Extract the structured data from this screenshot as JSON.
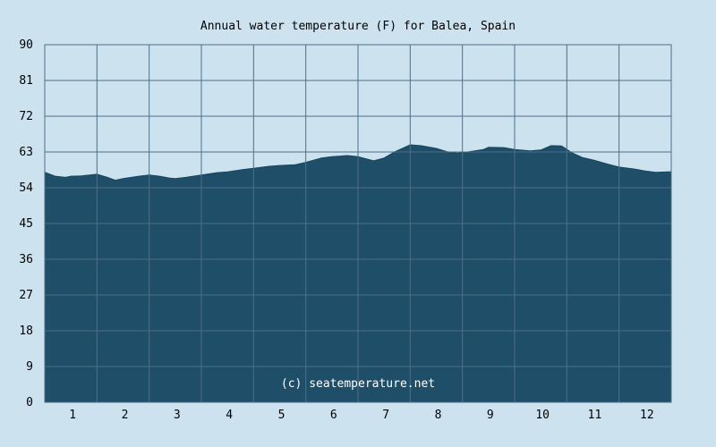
{
  "chart_data": {
    "type": "area",
    "title": "Annual water temperature (F) for Balea, Spain",
    "xlabel": "",
    "ylabel": "",
    "categories": [
      "1",
      "2",
      "3",
      "4",
      "5",
      "6",
      "7",
      "8",
      "9",
      "10",
      "11",
      "12"
    ],
    "xlim": [
      0.5,
      12.5
    ],
    "ylim": [
      0,
      90
    ],
    "yticks": [
      0,
      9,
      18,
      27,
      36,
      45,
      54,
      63,
      72,
      81,
      90
    ],
    "grid": true,
    "credit": "(c) seatemperature.net",
    "series": [
      {
        "x": [
          0.5,
          0.7,
          0.9,
          1.0,
          1.2,
          1.5,
          1.7,
          1.85,
          2.0,
          2.3,
          2.5,
          2.7,
          2.9,
          3.0,
          3.2,
          3.5,
          3.8,
          4.0,
          4.3,
          4.5,
          4.8,
          5.0,
          5.3,
          5.5,
          5.8,
          6.0,
          6.3,
          6.5,
          6.8,
          7.0,
          7.2,
          7.5,
          7.7,
          8.0,
          8.2,
          8.4,
          8.6,
          8.9,
          9.0,
          9.3,
          9.5,
          9.8,
          10.0,
          10.2,
          10.4,
          10.6,
          10.8,
          11.0,
          11.3,
          11.5,
          11.8,
          12.0,
          12.2,
          12.5
        ],
        "values": [
          57.9,
          56.9,
          56.6,
          56.9,
          57.0,
          57.4,
          56.6,
          55.9,
          56.3,
          56.9,
          57.2,
          56.9,
          56.4,
          56.3,
          56.6,
          57.2,
          57.8,
          58.0,
          58.6,
          58.9,
          59.4,
          59.6,
          59.8,
          60.4,
          61.5,
          61.8,
          62.1,
          61.8,
          60.8,
          61.5,
          63.0,
          64.8,
          64.6,
          63.9,
          63.1,
          62.7,
          63.0,
          63.6,
          64.2,
          64.1,
          63.6,
          63.3,
          63.5,
          64.6,
          64.5,
          62.8,
          61.6,
          61.0,
          59.9,
          59.2,
          58.7,
          58.2,
          57.9,
          58.0
        ]
      }
    ]
  }
}
